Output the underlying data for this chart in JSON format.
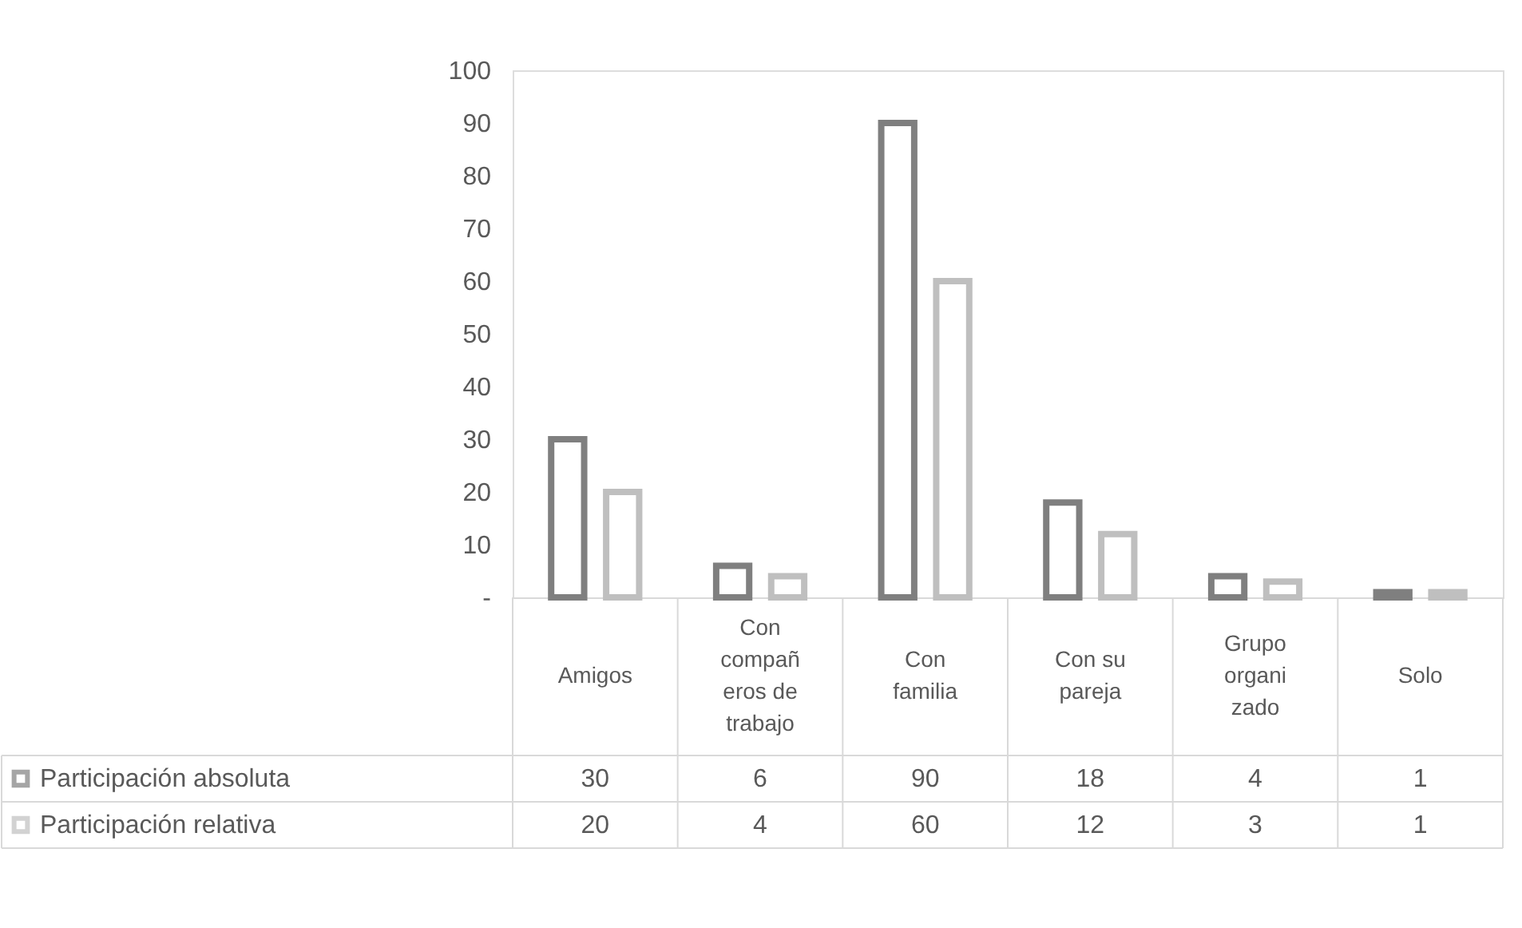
{
  "chart_data": {
    "type": "bar",
    "categories": [
      "Amigos",
      "Con compañeros de trabajo",
      "Con familia",
      "Con su pareja",
      "Grupo organizado",
      "Solo"
    ],
    "series": [
      {
        "name": "Participación absoluta",
        "color": "#7f7f7f",
        "values": [
          30,
          6,
          90,
          18,
          4,
          1
        ]
      },
      {
        "name": "Participación relativa",
        "color": "#bfbfbf",
        "values": [
          20,
          4,
          60,
          12,
          3,
          1
        ]
      }
    ],
    "ylim": [
      0,
      100
    ],
    "yticks": [
      {
        "value": 0,
        "label": "-"
      },
      10,
      20,
      30,
      40,
      50,
      60,
      70,
      80,
      90,
      100
    ],
    "data_labels": true,
    "legend": "bottom"
  }
}
